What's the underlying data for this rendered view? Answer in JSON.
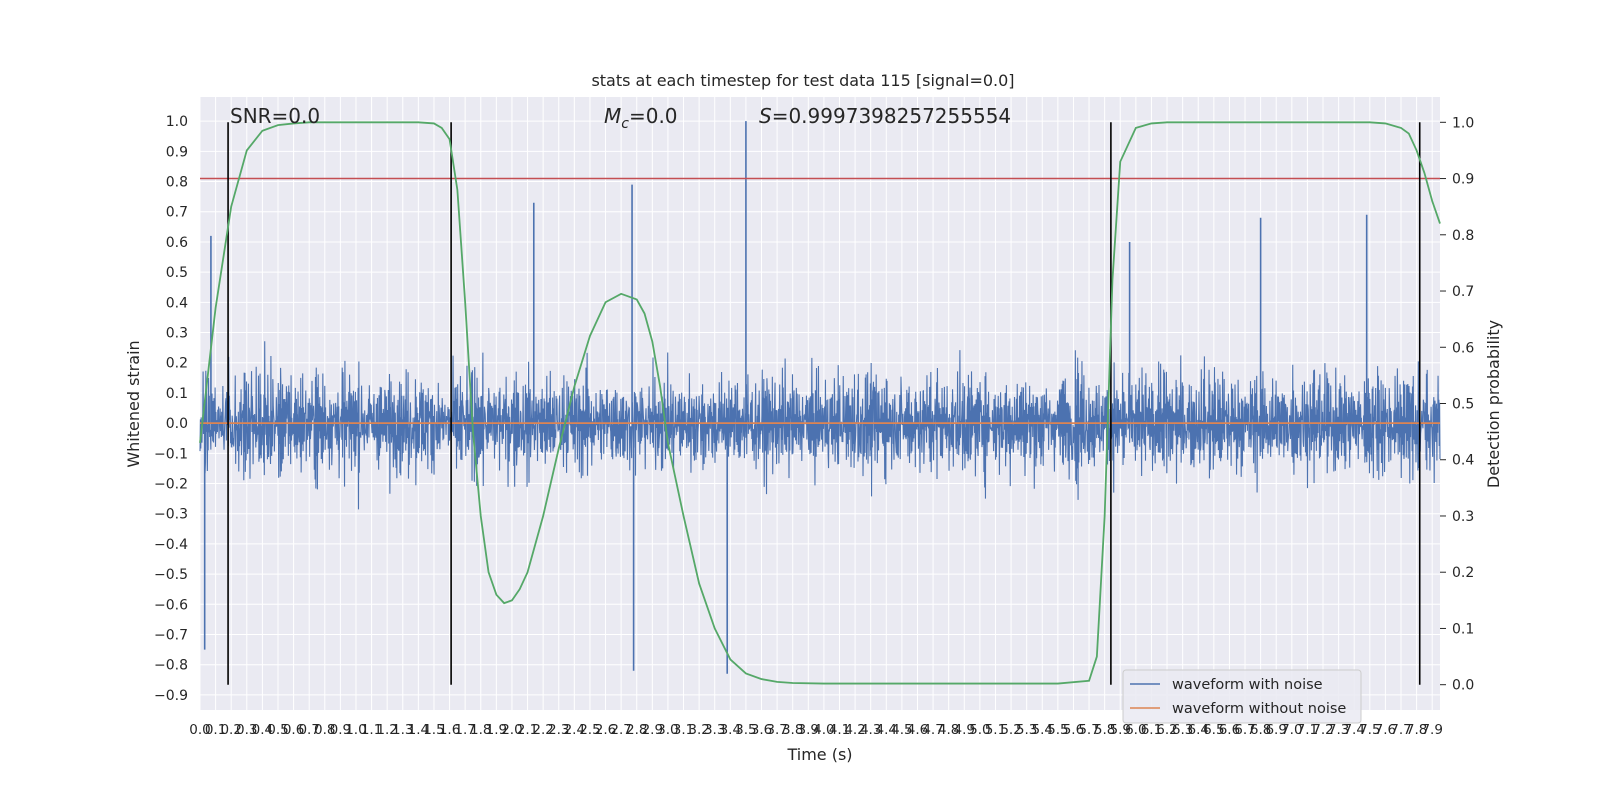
{
  "chart_data": {
    "type": "line",
    "title": "stats at each timestep for test data 115 [signal=0.0]",
    "xlabel": "Time (s)",
    "ylabel_left": "Whitened strain",
    "ylabel_right": "Detection probability",
    "xlim": [
      0.0,
      7.95
    ],
    "ylim_left": [
      -0.95,
      1.08
    ],
    "ylim_right": [
      -0.045,
      1.045
    ],
    "x_ticks": [
      "0.0",
      "0.1",
      "0.2",
      "0.3",
      "0.4",
      "0.5",
      "0.6",
      "0.7",
      "0.8",
      "0.9",
      "1.0",
      "1.1",
      "1.2",
      "1.3",
      "1.4",
      "1.5",
      "1.6",
      "1.7",
      "1.8",
      "1.9",
      "2.0",
      "2.1",
      "2.2",
      "2.3",
      "2.4",
      "2.5",
      "2.6",
      "2.7",
      "2.8",
      "2.9",
      "3.0",
      "3.1",
      "3.2",
      "3.3",
      "3.4",
      "3.5",
      "3.6",
      "3.7",
      "3.8",
      "3.9",
      "4.0",
      "4.1",
      "4.2",
      "4.3",
      "4.4",
      "4.5",
      "4.6",
      "4.7",
      "4.8",
      "4.9",
      "5.0",
      "5.1",
      "5.2",
      "5.3",
      "5.4",
      "5.5",
      "5.6",
      "5.7",
      "5.8",
      "5.9",
      "6.0",
      "6.1",
      "6.2",
      "6.3",
      "6.4",
      "6.5",
      "6.6",
      "6.7",
      "6.8",
      "6.9",
      "7.0",
      "7.1",
      "7.2",
      "7.3",
      "7.4",
      "7.5",
      "7.6",
      "7.7",
      "7.8",
      "7.9"
    ],
    "y_ticks_left": [
      "-0.9",
      "-0.8",
      "-0.7",
      "-0.6",
      "-0.5",
      "-0.4",
      "-0.3",
      "-0.2",
      "-0.1",
      "0.0",
      "0.1",
      "0.2",
      "0.3",
      "0.4",
      "0.5",
      "0.6",
      "0.7",
      "0.8",
      "0.9",
      "1.0"
    ],
    "y_ticks_right": [
      "0.0",
      "0.1",
      "0.2",
      "0.3",
      "0.4",
      "0.5",
      "0.6",
      "0.7",
      "0.8",
      "0.9",
      "1.0"
    ],
    "annotations": {
      "snr": "SNR=0.0",
      "mc_symbol": "M",
      "mc_sub": "c",
      "mc_value": "=0.0",
      "s_symbol": "S",
      "s_value": "=0.9997398257255554"
    },
    "threshold": {
      "axis": "right",
      "value": 0.9,
      "color": "#c44e52"
    },
    "vertical_markers": [
      0.18,
      1.61,
      5.84,
      7.82
    ],
    "noisy_envelope": {
      "typical_amplitude": 0.45,
      "peak_max": 1.0,
      "peak_min": -0.83
    },
    "series": [
      {
        "name": "waveform with noise",
        "axis": "left",
        "color": "#4c72b0",
        "notable_peaks": [
          {
            "x": 0.03,
            "y": -0.75
          },
          {
            "x": 0.07,
            "y": 0.62
          },
          {
            "x": 2.14,
            "y": 0.73
          },
          {
            "x": 2.77,
            "y": 0.79
          },
          {
            "x": 2.78,
            "y": -0.82
          },
          {
            "x": 3.5,
            "y": 1.0
          },
          {
            "x": 3.38,
            "y": -0.83
          },
          {
            "x": 5.96,
            "y": 0.6
          },
          {
            "x": 6.8,
            "y": 0.68
          },
          {
            "x": 7.48,
            "y": 0.69
          }
        ]
      },
      {
        "name": "waveform without noise",
        "axis": "left",
        "color": "#dd8452",
        "x": [
          0.0,
          7.95
        ],
        "y": [
          0.0,
          0.0
        ]
      },
      {
        "axis": "right",
        "color": "#55a868",
        "x": [
          0.0,
          0.1,
          0.2,
          0.3,
          0.4,
          0.5,
          0.6,
          0.7,
          0.8,
          0.9,
          1.0,
          1.1,
          1.2,
          1.3,
          1.4,
          1.5,
          1.55,
          1.6,
          1.65,
          1.7,
          1.75,
          1.8,
          1.85,
          1.9,
          1.95,
          2.0,
          2.05,
          2.1,
          2.2,
          2.3,
          2.4,
          2.5,
          2.6,
          2.7,
          2.8,
          2.85,
          2.9,
          2.95,
          3.0,
          3.1,
          3.2,
          3.3,
          3.4,
          3.5,
          3.6,
          3.7,
          3.8,
          4.0,
          4.5,
          5.0,
          5.5,
          5.7,
          5.75,
          5.8,
          5.85,
          5.9,
          6.0,
          6.1,
          6.2,
          6.5,
          7.0,
          7.5,
          7.6,
          7.7,
          7.75,
          7.8,
          7.85,
          7.9,
          7.95
        ],
        "y": [
          0.43,
          0.67,
          0.85,
          0.95,
          0.985,
          0.995,
          0.998,
          1.0,
          1.0,
          1.0,
          1.0,
          1.0,
          1.0,
          1.0,
          1.0,
          0.998,
          0.99,
          0.97,
          0.88,
          0.68,
          0.45,
          0.3,
          0.2,
          0.16,
          0.145,
          0.15,
          0.17,
          0.2,
          0.3,
          0.42,
          0.53,
          0.62,
          0.68,
          0.695,
          0.685,
          0.66,
          0.61,
          0.53,
          0.43,
          0.3,
          0.18,
          0.1,
          0.045,
          0.02,
          0.01,
          0.005,
          0.003,
          0.002,
          0.002,
          0.002,
          0.002,
          0.007,
          0.05,
          0.3,
          0.72,
          0.93,
          0.99,
          0.998,
          1.0,
          1.0,
          1.0,
          1.0,
          0.998,
          0.99,
          0.98,
          0.95,
          0.91,
          0.86,
          0.82
        ]
      }
    ],
    "legend": {
      "placement": "lower right",
      "entries": [
        {
          "label": "waveform with noise",
          "color": "#4c72b0"
        },
        {
          "label": "waveform without noise",
          "color": "#dd8452"
        }
      ]
    },
    "grid": true,
    "background": "#eaeaf2"
  }
}
